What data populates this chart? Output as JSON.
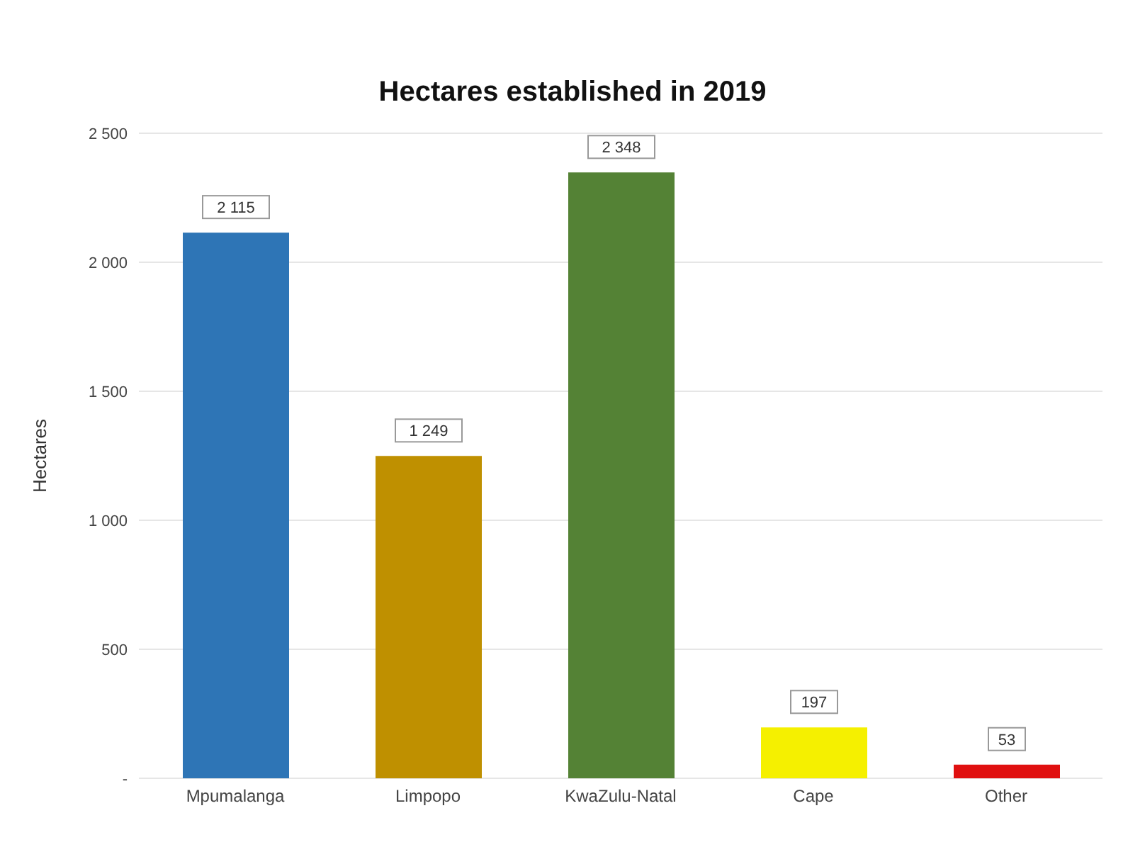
{
  "chart_data": {
    "type": "bar",
    "title": "Hectares established in 2019",
    "ylabel": "Hectares",
    "categories": [
      "Mpumalanga",
      "Limpopo",
      "KwaZulu-Natal",
      "Cape",
      "Other"
    ],
    "values": [
      2115,
      1249,
      2348,
      197,
      53
    ],
    "value_labels": [
      "2 115",
      "1 249",
      "2 348",
      "197",
      "53"
    ],
    "colors": [
      "#2e75b6",
      "#bf9000",
      "#548235",
      "#f5f000",
      "#e01010"
    ],
    "ylim": [
      0,
      2500
    ],
    "yticks": [
      {
        "value": 0,
        "label": "-"
      },
      {
        "value": 500,
        "label": "500"
      },
      {
        "value": 1000,
        "label": "1 000"
      },
      {
        "value": 1500,
        "label": "1 500"
      },
      {
        "value": 2000,
        "label": "2 000"
      },
      {
        "value": 2500,
        "label": "2 500"
      }
    ],
    "grid": "y",
    "legend": false
  }
}
